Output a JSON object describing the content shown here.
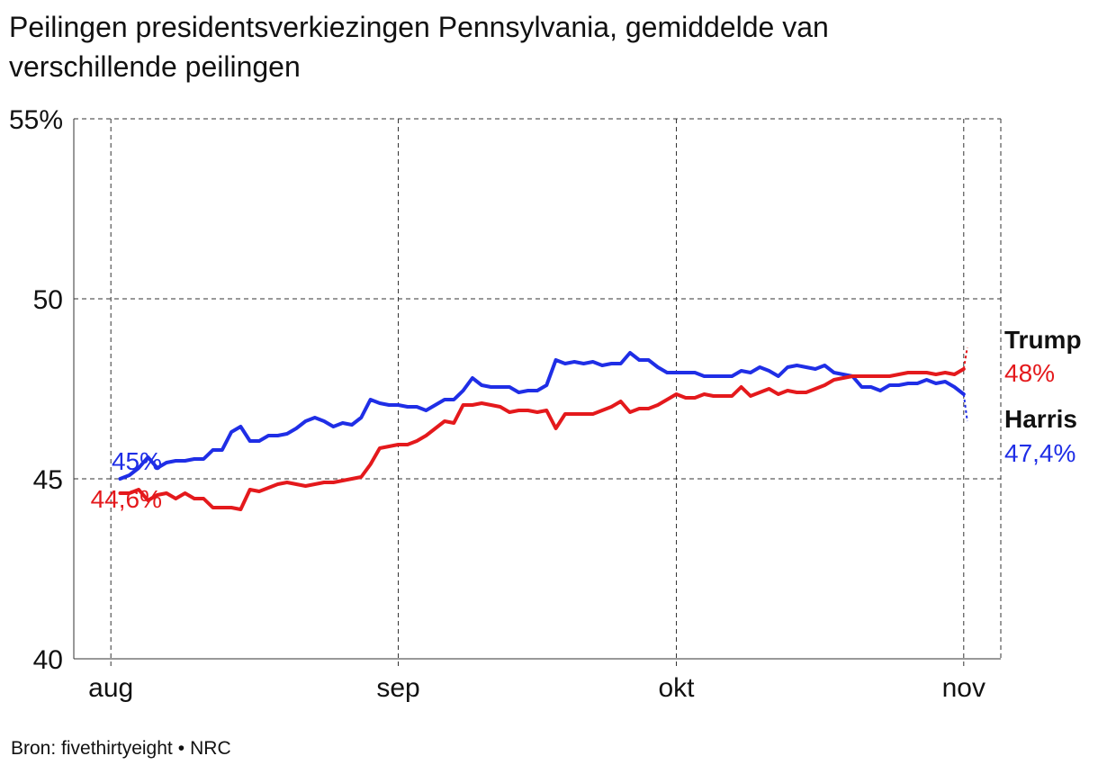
{
  "title": "Peilingen presidentsverkiezingen Pennsylvania, gemiddelde van verschillende peilingen",
  "source": {
    "left": "Bron: fivethirtyeight",
    "separator": "•",
    "right": "NRC"
  },
  "chart_data": {
    "type": "line",
    "title": "Peilingen presidentsverkiezingen Pennsylvania, gemiddelde van verschillende peilingen",
    "xlabel": "",
    "ylabel": "",
    "ylim": [
      40,
      55
    ],
    "yticks": [
      {
        "value": 55,
        "label": "55%"
      },
      {
        "value": 50,
        "label": "50"
      },
      {
        "value": 45,
        "label": "45"
      },
      {
        "value": 40,
        "label": "40"
      }
    ],
    "xlim": [
      "2024-07-28",
      "2024-11-05"
    ],
    "xticks": [
      {
        "date": "2024-08-01",
        "label": "aug"
      },
      {
        "date": "2024-09-01",
        "label": "sep"
      },
      {
        "date": "2024-10-01",
        "label": "okt"
      },
      {
        "date": "2024-11-01",
        "label": "nov"
      }
    ],
    "grid": true,
    "series": [
      {
        "name": "Harris",
        "color": "#1f2ee6",
        "start_label": "45%",
        "end_label": "47,4%",
        "values": [
          [
            "2024-08-02",
            45.0
          ],
          [
            "2024-08-03",
            45.1
          ],
          [
            "2024-08-04",
            45.3
          ],
          [
            "2024-08-05",
            45.6
          ],
          [
            "2024-08-06",
            45.3
          ],
          [
            "2024-08-07",
            45.45
          ],
          [
            "2024-08-08",
            45.5
          ],
          [
            "2024-08-09",
            45.5
          ],
          [
            "2024-08-10",
            45.55
          ],
          [
            "2024-08-11",
            45.55
          ],
          [
            "2024-08-12",
            45.8
          ],
          [
            "2024-08-13",
            45.8
          ],
          [
            "2024-08-14",
            46.3
          ],
          [
            "2024-08-15",
            46.45
          ],
          [
            "2024-08-16",
            46.05
          ],
          [
            "2024-08-17",
            46.05
          ],
          [
            "2024-08-18",
            46.2
          ],
          [
            "2024-08-19",
            46.2
          ],
          [
            "2024-08-20",
            46.25
          ],
          [
            "2024-08-21",
            46.4
          ],
          [
            "2024-08-22",
            46.6
          ],
          [
            "2024-08-23",
            46.7
          ],
          [
            "2024-08-24",
            46.6
          ],
          [
            "2024-08-25",
            46.45
          ],
          [
            "2024-08-26",
            46.55
          ],
          [
            "2024-08-27",
            46.5
          ],
          [
            "2024-08-28",
            46.7
          ],
          [
            "2024-08-29",
            47.2
          ],
          [
            "2024-08-30",
            47.1
          ],
          [
            "2024-08-31",
            47.05
          ],
          [
            "2024-09-01",
            47.05
          ],
          [
            "2024-09-02",
            47.0
          ],
          [
            "2024-09-03",
            47.0
          ],
          [
            "2024-09-04",
            46.9
          ],
          [
            "2024-09-05",
            47.05
          ],
          [
            "2024-09-06",
            47.2
          ],
          [
            "2024-09-07",
            47.2
          ],
          [
            "2024-09-08",
            47.45
          ],
          [
            "2024-09-09",
            47.8
          ],
          [
            "2024-09-10",
            47.6
          ],
          [
            "2024-09-11",
            47.55
          ],
          [
            "2024-09-12",
            47.55
          ],
          [
            "2024-09-13",
            47.55
          ],
          [
            "2024-09-14",
            47.4
          ],
          [
            "2024-09-15",
            47.45
          ],
          [
            "2024-09-16",
            47.45
          ],
          [
            "2024-09-17",
            47.6
          ],
          [
            "2024-09-18",
            48.3
          ],
          [
            "2024-09-19",
            48.2
          ],
          [
            "2024-09-20",
            48.25
          ],
          [
            "2024-09-21",
            48.2
          ],
          [
            "2024-09-22",
            48.25
          ],
          [
            "2024-09-23",
            48.15
          ],
          [
            "2024-09-24",
            48.2
          ],
          [
            "2024-09-25",
            48.2
          ],
          [
            "2024-09-26",
            48.5
          ],
          [
            "2024-09-27",
            48.3
          ],
          [
            "2024-09-28",
            48.3
          ],
          [
            "2024-09-29",
            48.1
          ],
          [
            "2024-09-30",
            47.95
          ],
          [
            "2024-10-01",
            47.95
          ],
          [
            "2024-10-02",
            47.95
          ],
          [
            "2024-10-03",
            47.95
          ],
          [
            "2024-10-04",
            47.85
          ],
          [
            "2024-10-05",
            47.85
          ],
          [
            "2024-10-06",
            47.85
          ],
          [
            "2024-10-07",
            47.85
          ],
          [
            "2024-10-08",
            48.0
          ],
          [
            "2024-10-09",
            47.95
          ],
          [
            "2024-10-10",
            48.1
          ],
          [
            "2024-10-11",
            48.0
          ],
          [
            "2024-10-12",
            47.85
          ],
          [
            "2024-10-13",
            48.1
          ],
          [
            "2024-10-14",
            48.15
          ],
          [
            "2024-10-15",
            48.1
          ],
          [
            "2024-10-16",
            48.05
          ],
          [
            "2024-10-17",
            48.15
          ],
          [
            "2024-10-18",
            47.95
          ],
          [
            "2024-10-19",
            47.9
          ],
          [
            "2024-10-20",
            47.85
          ],
          [
            "2024-10-21",
            47.55
          ],
          [
            "2024-10-22",
            47.55
          ],
          [
            "2024-10-23",
            47.45
          ],
          [
            "2024-10-24",
            47.6
          ],
          [
            "2024-10-25",
            47.6
          ],
          [
            "2024-10-26",
            47.65
          ],
          [
            "2024-10-27",
            47.65
          ],
          [
            "2024-10-28",
            47.75
          ],
          [
            "2024-10-29",
            47.65
          ],
          [
            "2024-10-30",
            47.7
          ],
          [
            "2024-10-31",
            47.55
          ],
          [
            "2024-11-01",
            47.35
          ]
        ],
        "projection": [
          [
            "2024-11-01",
            47.35
          ],
          [
            "2024-11-01",
            46.6
          ]
        ]
      },
      {
        "name": "Trump",
        "color": "#e4191c",
        "start_label": "44,6%",
        "end_label": "48%",
        "values": [
          [
            "2024-08-02",
            44.6
          ],
          [
            "2024-08-03",
            44.6
          ],
          [
            "2024-08-04",
            44.7
          ],
          [
            "2024-08-05",
            44.4
          ],
          [
            "2024-08-06",
            44.55
          ],
          [
            "2024-08-07",
            44.6
          ],
          [
            "2024-08-08",
            44.45
          ],
          [
            "2024-08-09",
            44.6
          ],
          [
            "2024-08-10",
            44.45
          ],
          [
            "2024-08-11",
            44.45
          ],
          [
            "2024-08-12",
            44.2
          ],
          [
            "2024-08-13",
            44.2
          ],
          [
            "2024-08-14",
            44.2
          ],
          [
            "2024-08-15",
            44.15
          ],
          [
            "2024-08-16",
            44.7
          ],
          [
            "2024-08-17",
            44.65
          ],
          [
            "2024-08-18",
            44.75
          ],
          [
            "2024-08-19",
            44.85
          ],
          [
            "2024-08-20",
            44.9
          ],
          [
            "2024-08-21",
            44.85
          ],
          [
            "2024-08-22",
            44.8
          ],
          [
            "2024-08-23",
            44.85
          ],
          [
            "2024-08-24",
            44.9
          ],
          [
            "2024-08-25",
            44.9
          ],
          [
            "2024-08-26",
            44.95
          ],
          [
            "2024-08-27",
            45.0
          ],
          [
            "2024-08-28",
            45.05
          ],
          [
            "2024-08-29",
            45.4
          ],
          [
            "2024-08-30",
            45.85
          ],
          [
            "2024-08-31",
            45.9
          ],
          [
            "2024-09-01",
            45.95
          ],
          [
            "2024-09-02",
            45.95
          ],
          [
            "2024-09-03",
            46.05
          ],
          [
            "2024-09-04",
            46.2
          ],
          [
            "2024-09-05",
            46.4
          ],
          [
            "2024-09-06",
            46.6
          ],
          [
            "2024-09-07",
            46.55
          ],
          [
            "2024-09-08",
            47.05
          ],
          [
            "2024-09-09",
            47.05
          ],
          [
            "2024-09-10",
            47.1
          ],
          [
            "2024-09-11",
            47.05
          ],
          [
            "2024-09-12",
            47.0
          ],
          [
            "2024-09-13",
            46.85
          ],
          [
            "2024-09-14",
            46.9
          ],
          [
            "2024-09-15",
            46.9
          ],
          [
            "2024-09-16",
            46.85
          ],
          [
            "2024-09-17",
            46.9
          ],
          [
            "2024-09-18",
            46.4
          ],
          [
            "2024-09-19",
            46.8
          ],
          [
            "2024-09-20",
            46.8
          ],
          [
            "2024-09-21",
            46.8
          ],
          [
            "2024-09-22",
            46.8
          ],
          [
            "2024-09-23",
            46.9
          ],
          [
            "2024-09-24",
            47.0
          ],
          [
            "2024-09-25",
            47.15
          ],
          [
            "2024-09-26",
            46.85
          ],
          [
            "2024-09-27",
            46.95
          ],
          [
            "2024-09-28",
            46.95
          ],
          [
            "2024-09-29",
            47.05
          ],
          [
            "2024-09-30",
            47.2
          ],
          [
            "2024-10-01",
            47.35
          ],
          [
            "2024-10-02",
            47.25
          ],
          [
            "2024-10-03",
            47.25
          ],
          [
            "2024-10-04",
            47.35
          ],
          [
            "2024-10-05",
            47.3
          ],
          [
            "2024-10-06",
            47.3
          ],
          [
            "2024-10-07",
            47.3
          ],
          [
            "2024-10-08",
            47.55
          ],
          [
            "2024-10-09",
            47.3
          ],
          [
            "2024-10-10",
            47.4
          ],
          [
            "2024-10-11",
            47.5
          ],
          [
            "2024-10-12",
            47.35
          ],
          [
            "2024-10-13",
            47.45
          ],
          [
            "2024-10-14",
            47.4
          ],
          [
            "2024-10-15",
            47.4
          ],
          [
            "2024-10-16",
            47.5
          ],
          [
            "2024-10-17",
            47.6
          ],
          [
            "2024-10-18",
            47.75
          ],
          [
            "2024-10-19",
            47.8
          ],
          [
            "2024-10-20",
            47.85
          ],
          [
            "2024-10-21",
            47.85
          ],
          [
            "2024-10-22",
            47.85
          ],
          [
            "2024-10-23",
            47.85
          ],
          [
            "2024-10-24",
            47.85
          ],
          [
            "2024-10-25",
            47.9
          ],
          [
            "2024-10-26",
            47.95
          ],
          [
            "2024-10-27",
            47.95
          ],
          [
            "2024-10-28",
            47.95
          ],
          [
            "2024-10-29",
            47.9
          ],
          [
            "2024-10-30",
            47.95
          ],
          [
            "2024-10-31",
            47.9
          ],
          [
            "2024-11-01",
            48.05
          ]
        ],
        "projection": [
          [
            "2024-11-01",
            48.05
          ],
          [
            "2024-11-01",
            48.65
          ]
        ]
      }
    ]
  }
}
